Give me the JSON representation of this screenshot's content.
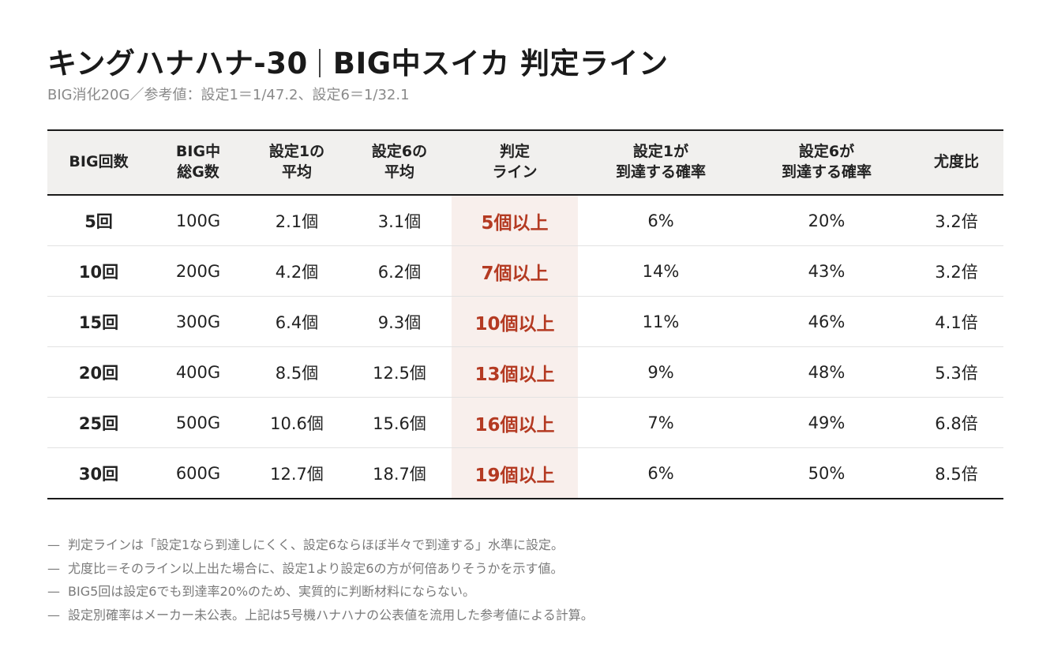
{
  "header": {
    "title_main": "キングハナハナ-30",
    "title_sub": "BIG中スイカ 判定ライン",
    "subtitle": "BIG消化20G／参考値：設定1＝1/47.2、設定6＝1/32.1"
  },
  "table": {
    "columns": [
      [
        "BIG回数"
      ],
      [
        "BIG中",
        "総G数"
      ],
      [
        "設定1の",
        "平均"
      ],
      [
        "設定6の",
        "平均"
      ],
      [
        "判定",
        "ライン"
      ],
      [
        "設定1が",
        "到達する確率"
      ],
      [
        "設定6が",
        "到達する確率"
      ],
      [
        "尤度比"
      ]
    ],
    "rows": [
      [
        "5回",
        "100G",
        "2.1個",
        "3.1個",
        "5個以上",
        "6%",
        "20%",
        "3.2倍"
      ],
      [
        "10回",
        "200G",
        "4.2個",
        "6.2個",
        "7個以上",
        "14%",
        "43%",
        "3.2倍"
      ],
      [
        "15回",
        "300G",
        "6.4個",
        "9.3個",
        "10個以上",
        "11%",
        "46%",
        "4.1倍"
      ],
      [
        "20回",
        "400G",
        "8.5個",
        "12.5個",
        "13個以上",
        "9%",
        "48%",
        "5.3倍"
      ],
      [
        "25回",
        "500G",
        "10.6個",
        "15.6個",
        "16個以上",
        "7%",
        "49%",
        "6.8倍"
      ],
      [
        "30回",
        "600G",
        "12.7個",
        "18.7個",
        "19個以上",
        "6%",
        "50%",
        "8.5倍"
      ]
    ]
  },
  "notes": [
    "判定ラインは「設定1なら到達しにくく、設定6ならほぼ半々で到達する」水準に設定。",
    "尤度比＝そのライン以上出た場合に、設定1より設定6の方が何倍ありそうかを示す値。",
    "BIG5回は設定6でも到達率20%のため、実質的に判断材料にならない。",
    "設定別確率はメーカー未公表。上記は5号機ハナハナの公表値を流用した参考値による計算。"
  ],
  "note_dash": "—",
  "colors": {
    "accent": "#b43a22",
    "highlight_bg": "#f8efec",
    "header_bg": "#f1f0ee",
    "rule": "#1a1a1a"
  }
}
